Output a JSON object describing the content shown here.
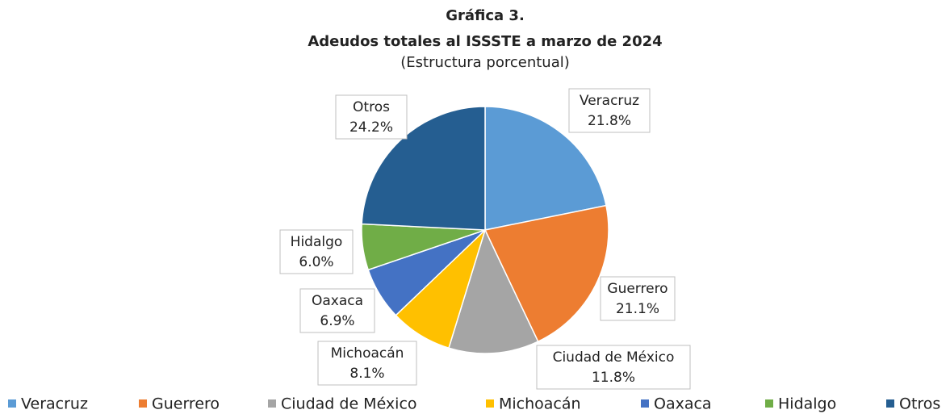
{
  "chart_data": {
    "type": "pie",
    "title": [
      "Gráfica 3.",
      "Adeudos totales al ISSSTE a marzo de 2024"
    ],
    "subtitle": "(Estructura porcentual)",
    "categories": [
      "Veracruz",
      "Guerrero",
      "Ciudad de México",
      "Michoacán",
      "Oaxaca",
      "Hidalgo",
      "Otros"
    ],
    "values": [
      21.8,
      21.1,
      11.8,
      8.1,
      6.9,
      6.0,
      24.2
    ],
    "value_labels": [
      "21.8%",
      "21.1%",
      "11.8%",
      "8.1%",
      "6.9%",
      "6.0%",
      "24.2%"
    ],
    "colors": [
      "#5b9bd5",
      "#ed7d31",
      "#a5a5a5",
      "#ffc000",
      "#4472c4",
      "#70ad47",
      "#255e91"
    ],
    "legend": "bottom"
  }
}
